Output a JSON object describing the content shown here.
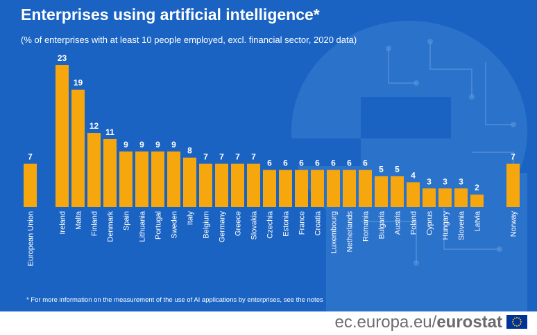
{
  "header": {
    "title": "Enterprises using artificial intelligence*",
    "subtitle": "(% of enterprises with at least 10 people employed, excl. financial sector, 2020 data)"
  },
  "footnote": "* For more information on the measurement of the use of AI applications by enterprises, see the notes",
  "footer": {
    "site_prefix": "ec.europa.eu/",
    "site_brand": "eurostat"
  },
  "colors": {
    "background": "#1a63c2",
    "bar": "#f5a70d",
    "text": "#ffffff"
  },
  "chart_data": {
    "type": "bar",
    "title": "Enterprises using artificial intelligence*",
    "subtitle": "(% of enterprises with at least 10 people employed, excl. financial sector, 2020 data)",
    "categories": [
      "European Union",
      "Ireland",
      "Malta",
      "Finland",
      "Denmark",
      "Spain",
      "Lithuania",
      "Portugal",
      "Sweden",
      "Italy",
      "Belgium",
      "Germany",
      "Greece",
      "Slovakia",
      "Czechia",
      "Estonia",
      "France",
      "Croatia",
      "Luxembourg",
      "Netherlands",
      "Romania",
      "Bulgaria",
      "Austria",
      "Poland",
      "Cyprus",
      "Hungary",
      "Slovenia",
      "Latvia",
      "Norway"
    ],
    "values": [
      7,
      23,
      19,
      12,
      11,
      9,
      9,
      9,
      9,
      8,
      7,
      7,
      7,
      7,
      6,
      6,
      6,
      6,
      6,
      6,
      6,
      5,
      5,
      4,
      3,
      3,
      3,
      2,
      7
    ],
    "data_labels": [
      "7",
      "23",
      "19",
      "12",
      "11",
      "9",
      "9",
      "9",
      "9",
      "8",
      "7",
      "7",
      "7",
      "7",
      "6",
      "6",
      "6",
      "6",
      "6",
      "6",
      "6",
      "5",
      "5",
      "4",
      "3",
      "3",
      "3",
      "2",
      "7"
    ],
    "ylim": [
      0,
      23
    ],
    "grid": false,
    "legend": "none"
  }
}
